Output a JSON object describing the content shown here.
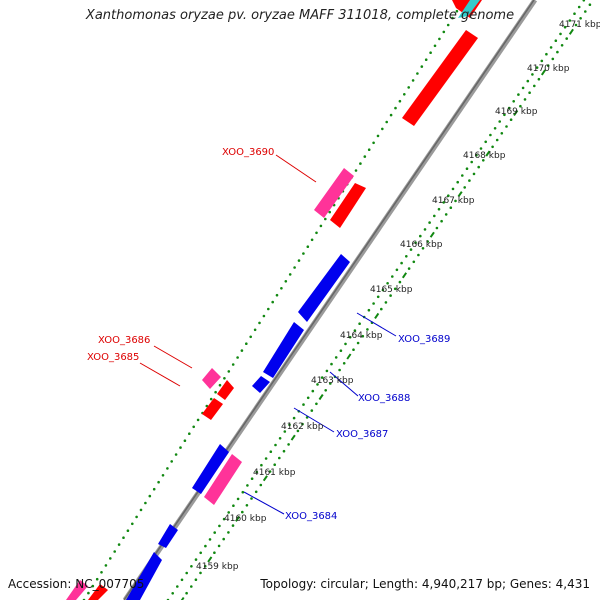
{
  "title": "Xanthomonas oryzae pv. oryzae MAFF 311018, complete genome",
  "footer": {
    "accession": "Accession: NC_007705",
    "summary": "Topology: circular; Length: 4,940,217 bp; Genes: 4,431"
  },
  "colors": {
    "backbone": "#7a7a7a",
    "forward_cds": "#ff0000",
    "reverse_cds": "#0000ee",
    "forward_other": "#ff3399",
    "label_forward": "#dd0000",
    "label_reverse": "#0000cc",
    "ticks": "#118811"
  },
  "ticks": [
    "4159 kbp",
    "4160 kbp",
    "4161 kbp",
    "4162 kbp",
    "4163 kbp",
    "4164 kbp",
    "4165 kbp",
    "4166 kbp",
    "4167 kbp",
    "4168 kbp",
    "4169 kbp",
    "4170 kbp",
    "4171 kbp"
  ],
  "gene_labels": [
    {
      "id": "XOO_3690",
      "strand": "forward"
    },
    {
      "id": "XOO_3686",
      "strand": "forward"
    },
    {
      "id": "XOO_3685",
      "strand": "forward"
    },
    {
      "id": "XOO_3689",
      "strand": "reverse"
    },
    {
      "id": "XOO_3688",
      "strand": "reverse"
    },
    {
      "id": "XOO_3687",
      "strand": "reverse"
    },
    {
      "id": "XOO_3684",
      "strand": "reverse"
    }
  ]
}
